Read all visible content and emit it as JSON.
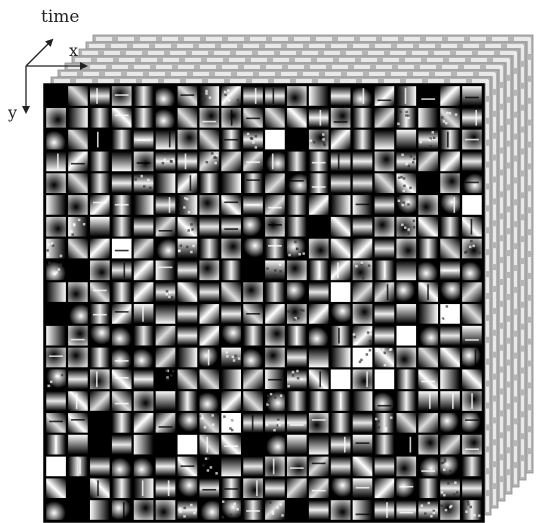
{
  "axes": {
    "time_label": "time",
    "x_label": "x",
    "y_label": "y"
  },
  "grid": {
    "rows": 20,
    "cols": 20
  },
  "stack": {
    "layers": 7
  },
  "colors": {
    "background": "#ffffff",
    "front_border": "#000000",
    "back_layer_fill": "#b5b5b5",
    "back_layer_tile": "#eeeeee",
    "axis": "#222222"
  }
}
